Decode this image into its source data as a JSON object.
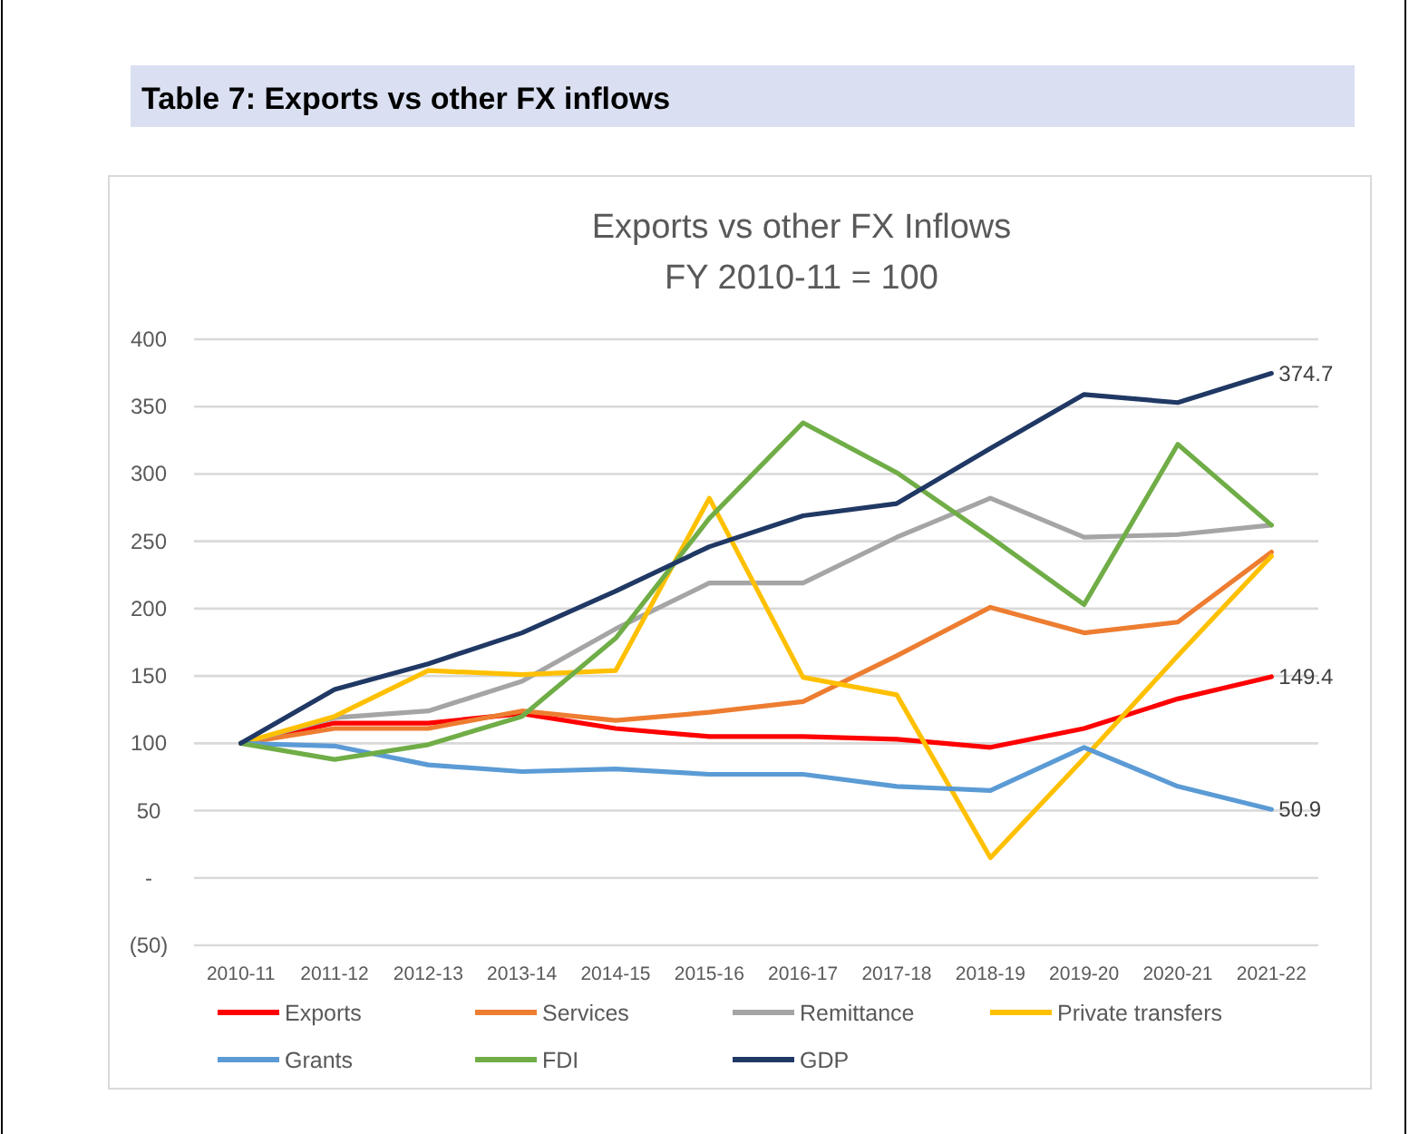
{
  "chart_data": {
    "type": "line",
    "title": "Table 7: Exports vs other FX inflows",
    "subtitle": "Exports vs other FX Inflows\nFY 2010-11 = 100",
    "categories": [
      "2010-11",
      "2011-12",
      "2012-13",
      "2013-14",
      "2014-15",
      "2015-16",
      "2016-17",
      "2017-18",
      "2018-19",
      "2019-20",
      "2020-21",
      "2021-22"
    ],
    "series": [
      {
        "name": "Exports",
        "color": "#ff0000",
        "values": [
          100,
          115,
          115,
          122,
          111,
          105,
          105,
          103,
          97,
          111,
          133,
          149.4
        ],
        "value_labels": [
          null,
          null,
          null,
          null,
          null,
          null,
          null,
          null,
          null,
          null,
          null,
          "149.4"
        ]
      },
      {
        "name": "Services",
        "color": "#ed7d31",
        "values": [
          100,
          111,
          111,
          124,
          117,
          123,
          131,
          165,
          201,
          182,
          190,
          242
        ]
      },
      {
        "name": "Remittance",
        "color": "#a5a5a5",
        "values": [
          100,
          119,
          124,
          146,
          185,
          219,
          219,
          253,
          282,
          253,
          255,
          262
        ]
      },
      {
        "name": "Private transfers",
        "color": "#ffc000",
        "values": [
          100,
          120,
          154,
          151,
          154,
          282,
          149,
          136,
          15,
          89,
          165,
          239
        ]
      },
      {
        "name": "Grants",
        "color": "#5b9bd5",
        "values": [
          100,
          98,
          84,
          79,
          81,
          77,
          77,
          68,
          65,
          97,
          68,
          50.9
        ],
        "value_labels": [
          null,
          null,
          null,
          null,
          null,
          null,
          null,
          null,
          null,
          null,
          null,
          "50.9"
        ]
      },
      {
        "name": "FDI",
        "color": "#70ad47",
        "values": [
          100,
          88,
          99,
          120,
          178,
          267,
          338,
          301,
          253,
          203,
          322,
          262
        ]
      },
      {
        "name": "GDP",
        "color": "#203864",
        "values": [
          100,
          140,
          159,
          182,
          213,
          246,
          269,
          278,
          319,
          359,
          353,
          374.7
        ],
        "value_labels": [
          null,
          null,
          null,
          null,
          null,
          null,
          null,
          null,
          null,
          null,
          null,
          "374.7"
        ]
      }
    ],
    "ylim": [
      -50,
      400
    ],
    "yticks": [
      {
        "value": -50,
        "label": "(50)"
      },
      {
        "value": 0,
        "label": "-"
      },
      50,
      100,
      150,
      200,
      250,
      300,
      350,
      400
    ],
    "grid": "y",
    "legend": "bottom",
    "marker": "none",
    "line_style": "solid"
  }
}
